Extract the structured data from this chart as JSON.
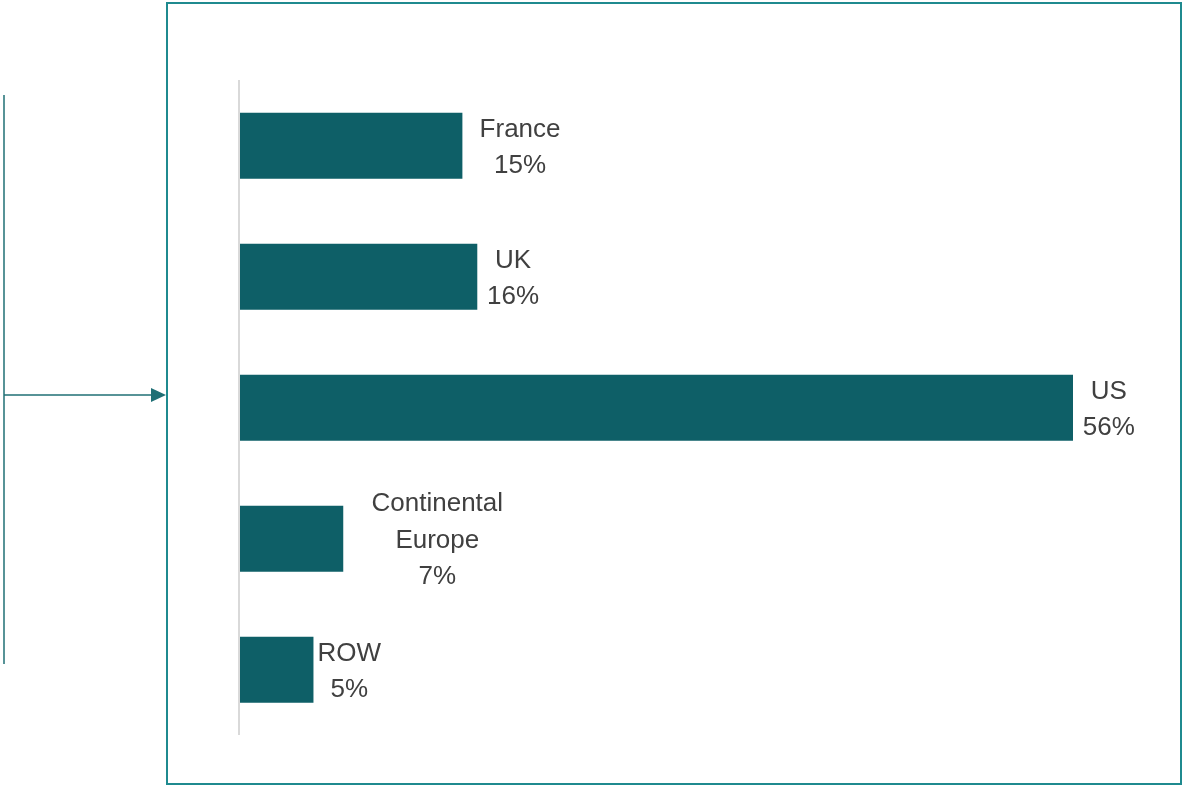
{
  "chart_data": {
    "type": "bar",
    "orientation": "horizontal",
    "categories": [
      "France",
      "UK",
      "US",
      "Continental Europe",
      "ROW"
    ],
    "values": [
      15,
      16,
      56,
      7,
      5
    ],
    "value_labels": [
      "15%",
      "16%",
      "56%",
      "7%",
      "5%"
    ],
    "color": "#0e5f67"
  }
}
